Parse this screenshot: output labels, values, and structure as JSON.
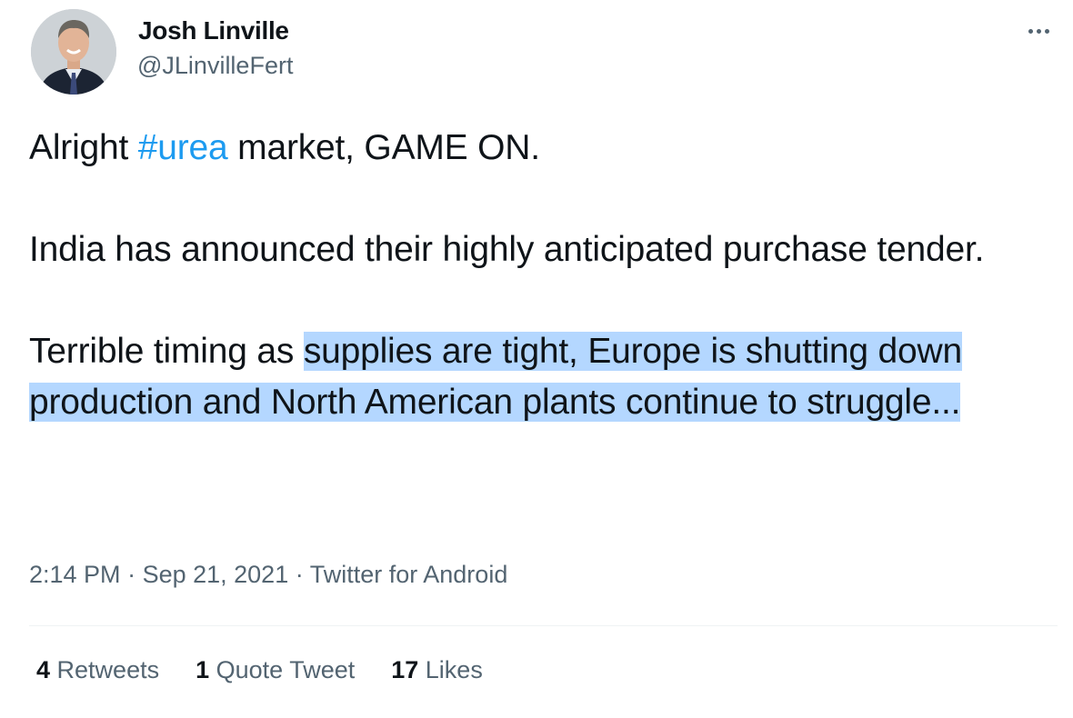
{
  "author": {
    "name": "Josh Linville",
    "handle": "@JLinvilleFert"
  },
  "tweet": {
    "line1_before": "Alright ",
    "hashtag": "#urea",
    "line1_after": " market, GAME ON.",
    "para2": "India has announced their highly anticipated purchase tender.",
    "para3_plain": "Terrible timing as ",
    "para3_highlighted": "supplies are tight, Europe is shutting down production and North American plants continue to struggle..."
  },
  "meta": {
    "time": "2:14 PM",
    "separator": " · ",
    "date": "Sep 21, 2021",
    "source": "Twitter for Android"
  },
  "stats": {
    "retweets_count": "4",
    "retweets_label": " Retweets",
    "quotes_count": "1",
    "quotes_label": " Quote Tweet",
    "likes_count": "17",
    "likes_label": " Likes"
  },
  "colors": {
    "link": "#1d9bf0",
    "secondary_text": "#536471",
    "primary_text": "#0f1419",
    "selection_highlight": "#b4d7ff"
  },
  "icons": {
    "more": "more-icon"
  }
}
